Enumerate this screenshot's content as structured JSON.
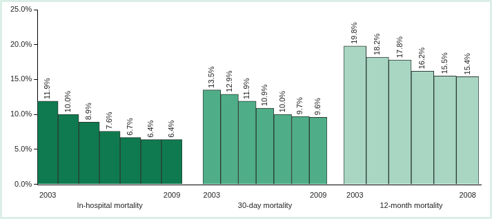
{
  "chart_data": [
    {
      "type": "bar",
      "xlabel": "In-hospital mortality",
      "categories": [
        "2003",
        null,
        null,
        null,
        null,
        null,
        "2009"
      ],
      "values": [
        11.9,
        10.0,
        8.9,
        7.6,
        6.7,
        6.4,
        6.4
      ],
      "value_labels": [
        "11.9%",
        "10.0%",
        "8.9%",
        "7.6%",
        "6.7%",
        "6.4%",
        "6.4%"
      ],
      "color": "#0f7a4f",
      "ylim": [
        0,
        25
      ],
      "yticks": [
        {
          "value": 0,
          "label": "0.0%"
        },
        {
          "value": 5,
          "label": "5.0%"
        },
        {
          "value": 10,
          "label": "10.0%"
        },
        {
          "value": 15,
          "label": "15.0%"
        },
        {
          "value": 20,
          "label": "20.0%"
        },
        {
          "value": 25,
          "label": "25.0%"
        }
      ],
      "grid": false,
      "data_labels": true
    },
    {
      "type": "bar",
      "xlabel": "30-day mortality",
      "categories": [
        "2003",
        null,
        null,
        null,
        null,
        null,
        "2009"
      ],
      "values": [
        13.5,
        12.9,
        11.9,
        10.9,
        10.0,
        9.7,
        9.6
      ],
      "value_labels": [
        "13.5%",
        "12.9%",
        "11.9%",
        "10.9%",
        "10.0%",
        "9.7%",
        "9.6%"
      ],
      "color": "#4fae88",
      "ylim": [
        0,
        25
      ],
      "grid": false,
      "data_labels": true,
      "tick_labels": "x"
    },
    {
      "type": "bar",
      "xlabel": "12-month mortality",
      "categories": [
        "2003",
        null,
        null,
        null,
        null,
        "2008"
      ],
      "values": [
        19.8,
        18.2,
        17.8,
        16.2,
        15.5,
        15.4
      ],
      "value_labels": [
        "19.8%",
        "18.2%",
        "17.8%",
        "16.2%",
        "15.5%",
        "15.4%"
      ],
      "color": "#a9d6c3",
      "ylim": [
        0,
        25
      ],
      "grid": false,
      "data_labels": true,
      "tick_labels": "x"
    }
  ]
}
